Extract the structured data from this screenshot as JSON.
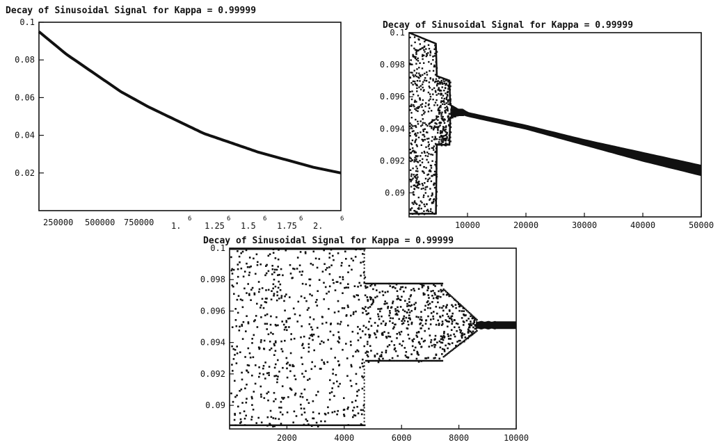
{
  "chart_data": [
    {
      "type": "line",
      "title": "Decay of Sinusoidal Signal for Kappa = 0.99999",
      "xlabel": "",
      "ylabel": "",
      "xlim": [
        1,
        1100000
      ],
      "ylim": [
        0.0,
        0.1
      ],
      "x_tick_labels": [
        "250000",
        "500000",
        "750000",
        "1.",
        "1.25",
        "1.5",
        "1.75",
        "2."
      ],
      "x_tick_sup": [
        "6",
        "6",
        "6",
        "6",
        "6"
      ],
      "y_tick_labels": [
        "0.1",
        "0.08",
        "0.06",
        "0.04",
        "0.02"
      ],
      "y_ticks": [
        0.1,
        0.08,
        0.06,
        0.04,
        0.02
      ],
      "series": [
        {
          "x": [
            1,
            100000,
            200000,
            300000,
            400000,
            500000,
            600000,
            700000,
            800000,
            900000,
            1000000,
            1100000
          ],
          "y": [
            0.095,
            0.083,
            0.073,
            0.063,
            0.055,
            0.048,
            0.041,
            0.036,
            0.031,
            0.027,
            0.023,
            0.02
          ]
        }
      ]
    },
    {
      "type": "scatter",
      "title": "Decay of Sinusoidal Signal for Kappa = 0.99999",
      "xlabel": "",
      "ylabel": "",
      "xlim": [
        0,
        50000
      ],
      "ylim": [
        0.0885,
        0.1
      ],
      "x_ticks": [
        10000,
        20000,
        30000,
        40000,
        50000
      ],
      "x_tick_labels": [
        "10000",
        "20000",
        "30000",
        "40000",
        "50000"
      ],
      "y_ticks": [
        0.1,
        0.098,
        0.096,
        0.094,
        0.092,
        0.09
      ],
      "y_tick_labels": [
        "0.1",
        "0.098",
        "0.096",
        "0.094",
        "0.092",
        "0.09"
      ],
      "band_x": [
        0,
        4700,
        4700,
        7000,
        7000,
        8400,
        8400,
        9200,
        10000,
        20000,
        30000,
        40000,
        50000
      ],
      "band_upper": [
        0.1,
        0.0993,
        0.0973,
        0.097,
        0.0955,
        0.0952,
        0.0952,
        0.0952,
        0.095,
        0.0942,
        0.0933,
        0.0925,
        0.0917
      ],
      "band_lower": [
        0.0887,
        0.0887,
        0.093,
        0.093,
        0.0947,
        0.0949,
        0.0949,
        0.0949,
        0.0948,
        0.094,
        0.093,
        0.092,
        0.0911
      ]
    },
    {
      "type": "scatter",
      "title": "Decay of Sinusoidal Signal for Kappa = 0.99999",
      "xlabel": "",
      "ylabel": "",
      "xlim": [
        0,
        10000
      ],
      "ylim": [
        0.0885,
        0.1
      ],
      "x_ticks": [
        2000,
        4000,
        6000,
        8000,
        10000
      ],
      "x_tick_labels": [
        "2000",
        "4000",
        "6000",
        "8000",
        "10000"
      ],
      "y_ticks": [
        0.1,
        0.098,
        0.096,
        0.094,
        0.092,
        0.09
      ],
      "y_tick_labels": [
        "0.1",
        "0.098",
        "0.096",
        "0.094",
        "0.092",
        "0.09"
      ],
      "segments": [
        {
          "x0": 0,
          "x1": 4700,
          "upper": 0.1,
          "lower": 0.0887
        },
        {
          "x0": 4700,
          "x1": 7400,
          "upper": 0.0978,
          "lower": 0.0928
        },
        {
          "x0": 7400,
          "x1": 8600,
          "upper_start": 0.0975,
          "upper_end": 0.0955,
          "lower_start": 0.093,
          "lower_end": 0.0947
        },
        {
          "x0": 8600,
          "x1": 10000,
          "upper": 0.0953,
          "lower": 0.0949
        }
      ]
    }
  ]
}
